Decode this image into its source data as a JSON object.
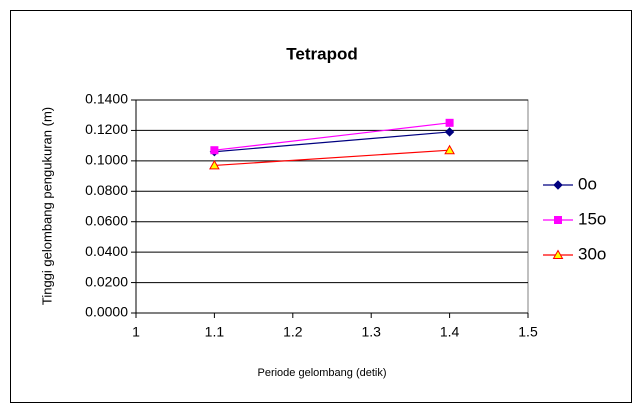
{
  "chart_data": {
    "type": "line",
    "title": "Tetrapod",
    "x_label": "Periode gelombang (detik)",
    "y_label": "Tinggi gelombang pengukuran (m)",
    "x": [
      1.1,
      1.4
    ],
    "series": [
      {
        "name": "0o",
        "color": "#000080",
        "marker": "diamond",
        "marker_fill": "#000080",
        "values": [
          0.106,
          0.119
        ]
      },
      {
        "name": "15o",
        "color": "#ff00ff",
        "marker": "square",
        "marker_fill": "#ff00ff",
        "values": [
          0.107,
          0.125
        ]
      },
      {
        "name": "30o",
        "color": "#ff0000",
        "marker": "triangle",
        "marker_fill": "#ffff00",
        "values": [
          0.097,
          0.107
        ]
      }
    ],
    "xlim": [
      1,
      1.5
    ],
    "xticks": [
      1,
      1.1,
      1.2,
      1.3,
      1.4,
      1.5
    ],
    "ylim": [
      0,
      0.14
    ],
    "yticks": [
      {
        "value": 0,
        "label": "0.0000"
      },
      {
        "value": 0.02,
        "label": "0.0200"
      },
      {
        "value": 0.04,
        "label": "0.0400"
      },
      {
        "value": 0.06,
        "label": "0.0600"
      },
      {
        "value": 0.08,
        "label": "0.0800"
      },
      {
        "value": 0.1,
        "label": "0.1000"
      },
      {
        "value": 0.12,
        "label": "0.1200"
      },
      {
        "value": 0.14,
        "label": "0.1400"
      }
    ],
    "grid": true,
    "legend": "right"
  }
}
